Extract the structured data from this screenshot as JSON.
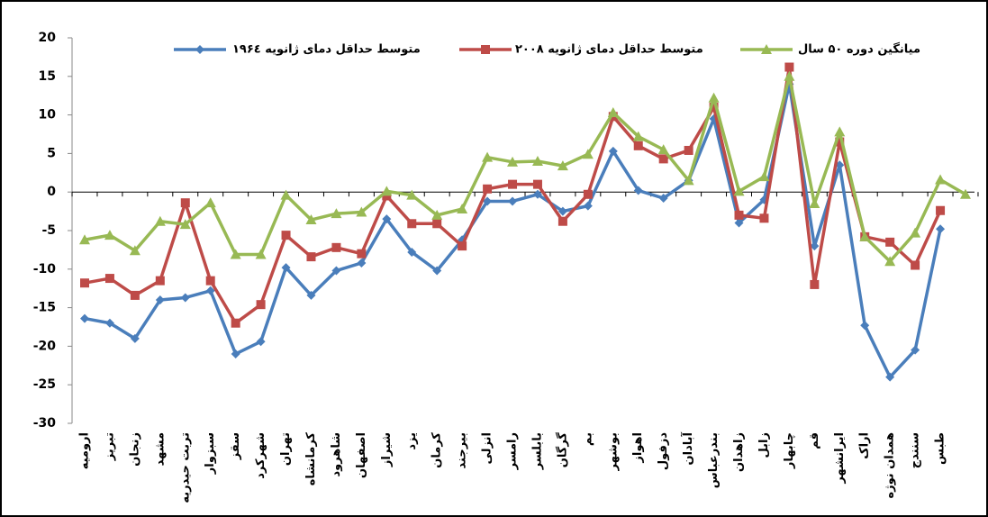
{
  "chart_data": {
    "type": "line",
    "categories": [
      "ارومیه",
      "تبریز",
      "زنجان",
      "مشهد",
      "تربت حیدریه",
      "سبزوار",
      "سقز",
      "شهرکرد",
      "تهران",
      "کرمانشاه",
      "شاهرود",
      "اصفهان",
      "شیراز",
      "یزد",
      "کرمان",
      "بیرجند",
      "انزلی",
      "رامسر",
      "بابلسر",
      "گرگان",
      "بم",
      "بوشهر",
      "اهواز",
      "دزفول",
      "آبادان",
      "بندرعباس",
      "زاهدان",
      "زابل",
      "چابهار",
      "قم",
      "ایرانشهر",
      "اراک",
      "همدان نوژه",
      "سنندج",
      "طبس",
      null
    ],
    "series": [
      {
        "name": "متوسط حداقل دمای ژانویه ۱۹۶٤",
        "color": "#4a7ebb",
        "marker": "diamond",
        "values": [
          -16.4,
          -17,
          -19,
          -14,
          -13.7,
          -12.8,
          -21,
          -19.4,
          -9.8,
          -13.4,
          -10.2,
          -9.2,
          -3.5,
          -7.8,
          -10.2,
          -6.2,
          -1.2,
          -1.2,
          -0.3,
          -2.5,
          -1.8,
          5.3,
          0.2,
          -0.8,
          1.5,
          9.5,
          -4,
          -1,
          14,
          -7,
          3.5,
          -17.3,
          -24,
          -20.5,
          -4.8,
          null
        ]
      },
      {
        "name": "متوسط حداقل دمای ژانویه ۲۰۰۸",
        "color": "#be4b48",
        "marker": "square",
        "values": [
          -11.8,
          -11.2,
          -13.4,
          -11.5,
          -1.4,
          -11.5,
          -17,
          -14.6,
          -5.6,
          -8.4,
          -7.2,
          -8,
          -0.5,
          -4.1,
          -4.1,
          -7,
          0.4,
          1,
          1,
          -3.8,
          -0.3,
          9.8,
          6,
          4.3,
          5.4,
          11,
          -3,
          -3.4,
          16.2,
          -12,
          6.5,
          -5.8,
          -6.5,
          -9.5,
          -2.4,
          null
        ]
      },
      {
        "name": "میانگین دوره ۵۰ سال",
        "color": "#98b954",
        "marker": "triangle",
        "values": [
          -6.2,
          -5.6,
          -7.6,
          -3.8,
          -4.2,
          -1.4,
          -8.1,
          -8.1,
          -0.4,
          -3.6,
          -2.8,
          -2.6,
          0.1,
          -0.4,
          -3,
          -2.2,
          4.5,
          3.9,
          4,
          3.4,
          4.9,
          10.3,
          7.2,
          5.5,
          1.5,
          12.2,
          0.1,
          2,
          15,
          -1.5,
          7.8,
          -5.8,
          -9,
          -5.3,
          1.6,
          -0.3
        ]
      }
    ],
    "ylim": [
      -30,
      20
    ],
    "yticks": [
      -30,
      -25,
      -20,
      -15,
      -10,
      -5,
      0,
      5,
      10,
      15,
      20
    ],
    "grid": false
  }
}
